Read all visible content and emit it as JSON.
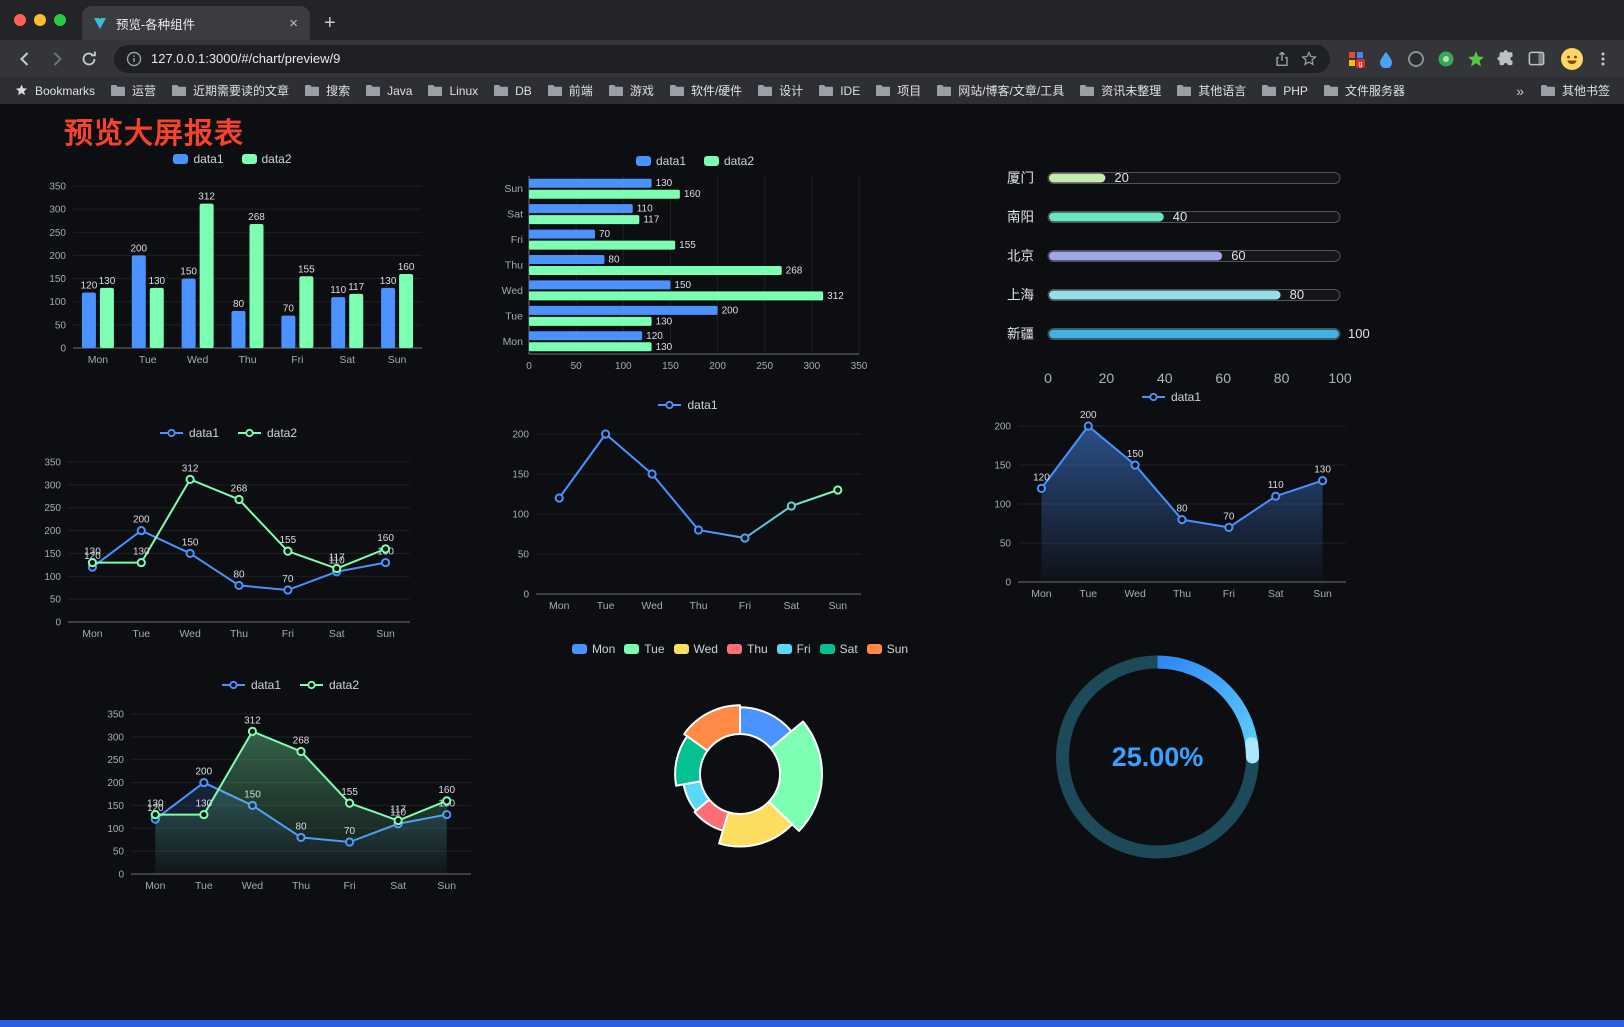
{
  "browser": {
    "tab_title": "预览-各种组件",
    "url": "127.0.0.1:3000/#/chart/preview/9",
    "new_tab_glyph": "+",
    "tab_close_glyph": "×",
    "bookmarks_label": "Bookmarks",
    "bookmarks": [
      "运营",
      "近期需要读的文章",
      "搜索",
      "Java",
      "Linux",
      "DB",
      "前端",
      "游戏",
      "软件/硬件",
      "设计",
      "IDE",
      "项目",
      "网站/博客/文章/工具",
      "资讯未整理",
      "其他语言",
      "PHP",
      "文件服务器"
    ],
    "bookmarks_overflow_glyph": "»",
    "other_bookmarks_label": "其他书签",
    "icons": [
      "back-icon",
      "forward-icon",
      "reload-icon",
      "site-info-icon",
      "share-icon",
      "bookmark-star-icon",
      "extension-pixel-icon",
      "extension-drop-icon",
      "extension-ring-icon",
      "extension-green-icon",
      "extension-star-icon",
      "extensions-puzzle-icon",
      "side-panel-icon",
      "profile-avatar",
      "kebab-menu-icon",
      "folder-icon"
    ]
  },
  "page": {
    "title": "预览大屏报表",
    "title_color": "#f5432c",
    "accent_bar_color": "#2b5fe3",
    "background": "#0d0e11"
  },
  "theme": {
    "bg": "#0d0e11",
    "axis_text": "#a6aab5",
    "axis_line": "#6e7079",
    "grid": "rgba(255,255,255,0.08)",
    "label_text": "#d9dce2",
    "legend_text": "#cfd3da"
  },
  "chart_data": [
    {
      "id": "grouped-bar",
      "type": "bar",
      "categories": [
        "Mon",
        "Tue",
        "Wed",
        "Thu",
        "Fri",
        "Sat",
        "Sun"
      ],
      "series": [
        {
          "name": "data1",
          "color": "#4992ff",
          "values": [
            120,
            200,
            150,
            80,
            70,
            110,
            130
          ]
        },
        {
          "name": "data2",
          "color": "#7cffb2",
          "values": [
            130,
            130,
            312,
            268,
            155,
            117,
            160
          ]
        }
      ],
      "ylim": [
        0,
        350
      ],
      "ytick_step": 50,
      "value_labels": true,
      "legend_position": "top",
      "grid": true
    },
    {
      "id": "horizontal-bar",
      "type": "bar-horizontal",
      "categories": [
        "Mon",
        "Tue",
        "Wed",
        "Thu",
        "Fri",
        "Sat",
        "Sun"
      ],
      "series": [
        {
          "name": "data1",
          "color": "#4992ff",
          "values": [
            120,
            200,
            150,
            80,
            70,
            110,
            130
          ]
        },
        {
          "name": "data2",
          "color": "#7cffb2",
          "values": [
            130,
            130,
            312,
            268,
            155,
            117,
            160
          ]
        }
      ],
      "xlim": [
        0,
        350
      ],
      "xtick_step": 50,
      "value_labels": true,
      "legend_position": "top",
      "grid": true
    },
    {
      "id": "city-progress",
      "type": "progress-bars",
      "max": 100,
      "axis_ticks": [
        0,
        20,
        40,
        60,
        80,
        100
      ],
      "items": [
        {
          "label": "厦门",
          "value": 20,
          "color": "#c4ebad"
        },
        {
          "label": "南阳",
          "value": 40,
          "color": "#6be6c1"
        },
        {
          "label": "北京",
          "value": 60,
          "color": "#a0a7e6"
        },
        {
          "label": "上海",
          "value": 80,
          "color": "#96dee8"
        },
        {
          "label": "新疆",
          "value": 100,
          "color": "#3fb1e3"
        }
      ]
    },
    {
      "id": "dual-line",
      "type": "line",
      "categories": [
        "Mon",
        "Tue",
        "Wed",
        "Thu",
        "Fri",
        "Sat",
        "Sun"
      ],
      "series": [
        {
          "name": "data1",
          "color": "#4992ff",
          "values": [
            120,
            200,
            150,
            80,
            70,
            110,
            130
          ]
        },
        {
          "name": "data2",
          "color": "#7cffb2",
          "values": [
            130,
            130,
            312,
            268,
            155,
            117,
            160
          ]
        }
      ],
      "ylim": [
        0,
        350
      ],
      "ytick_step": 50,
      "value_labels": true,
      "legend_position": "top"
    },
    {
      "id": "gradient-line",
      "type": "line",
      "categories": [
        "Mon",
        "Tue",
        "Wed",
        "Thu",
        "Fri",
        "Sat",
        "Sun"
      ],
      "series": [
        {
          "name": "data1",
          "color": "#4992ff",
          "gradient": [
            "#4992ff",
            "#7cffb2"
          ],
          "values": [
            120,
            200,
            150,
            80,
            70,
            110,
            130
          ]
        }
      ],
      "ylim": [
        0,
        200
      ],
      "ytick_step": 50,
      "value_labels": false,
      "legend_position": "top"
    },
    {
      "id": "area-line",
      "type": "line",
      "categories": [
        "Mon",
        "Tue",
        "Wed",
        "Thu",
        "Fri",
        "Sat",
        "Sun"
      ],
      "series": [
        {
          "name": "data1",
          "color": "#4992ff",
          "area": true,
          "area_opacity": 0.5,
          "values": [
            120,
            200,
            150,
            80,
            70,
            110,
            130
          ]
        }
      ],
      "ylim": [
        0,
        200
      ],
      "ytick_step": 50,
      "value_labels": true,
      "legend_position": "top"
    },
    {
      "id": "dual-line-area",
      "type": "line",
      "categories": [
        "Mon",
        "Tue",
        "Wed",
        "Thu",
        "Fri",
        "Sat",
        "Sun"
      ],
      "series": [
        {
          "name": "data1",
          "color": "#4992ff",
          "area": true,
          "area_opacity": 0.18,
          "values": [
            120,
            200,
            150,
            80,
            70,
            110,
            130
          ]
        },
        {
          "name": "data2",
          "color": "#7cffb2",
          "area": true,
          "area_opacity": 0.35,
          "values": [
            130,
            130,
            312,
            268,
            155,
            117,
            160
          ]
        }
      ],
      "ylim": [
        0,
        350
      ],
      "ytick_step": 50,
      "value_labels": true,
      "legend_position": "top"
    },
    {
      "id": "weekday-rose-donut",
      "type": "pie",
      "rose": true,
      "inner_radius": 40,
      "categories": [
        "Mon",
        "Tue",
        "Wed",
        "Thu",
        "Fri",
        "Sat",
        "Sun"
      ],
      "values": [
        120,
        200,
        150,
        80,
        70,
        110,
        130
      ],
      "colors": [
        "#4992ff",
        "#7cffb2",
        "#fddd60",
        "#ff6e76",
        "#58d9f9",
        "#05c091",
        "#ff8a45"
      ],
      "legend_position": "top"
    },
    {
      "id": "percent-gauge",
      "type": "gauge",
      "value": 25,
      "max": 100,
      "label": "25.00%",
      "color": "#37a2ff",
      "track_color": "#1d4a58",
      "arc_colors": [
        "#2f86f6",
        "#5fd0fa"
      ]
    }
  ]
}
